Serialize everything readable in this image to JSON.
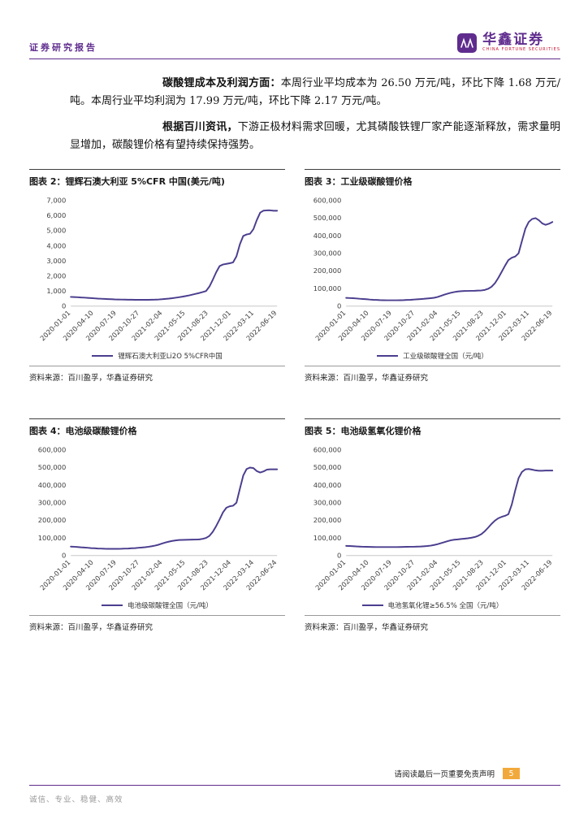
{
  "colors": {
    "accent_purple": "#5F2C8E",
    "line_purple": "#4B3E8E",
    "badge_orange": "#F2A93B",
    "brand_red": "#C8102E"
  },
  "header": {
    "report_type": "证券研究报告",
    "brand": "华鑫证券",
    "brand_sub": "CHINA FORTUNE SECURITIES"
  },
  "paragraphs": [
    {
      "lead": "碳酸锂成本及利润方面：",
      "text": "本周行业平均成本为 26.50 万元/吨，环比下降 1.68 万元/吨。本周行业平均利润为 17.99 万元/吨，环比下降 2.17 万元/吨。"
    },
    {
      "lead": "根据百川资讯，",
      "text": "下游正极材料需求回暖，尤其磷酸铁锂厂家产能逐渐释放，需求量明显增加，碳酸锂价格有望持续保持强势。"
    }
  ],
  "chart_data": [
    {
      "type": "line",
      "title": "图表 2：锂辉石澳大利亚 5%CFR 中国(美元/吨)",
      "legend": "锂辉石澳大利亚Li2O 5%CFR中国",
      "source": "资料来源：百川盈孚，华鑫证券研究",
      "ylim": [
        0,
        7000
      ],
      "ytick_step": 1000,
      "x_labels": [
        "2020-01-01",
        "2020-04-10",
        "2020-07-19",
        "2020-10-27",
        "2021-02-04",
        "2021-05-15",
        "2021-08-23",
        "2021-12-01",
        "2022-03-11",
        "2022-06-19"
      ],
      "values": [
        610,
        600,
        588,
        575,
        560,
        545,
        530,
        515,
        500,
        488,
        476,
        465,
        455,
        447,
        440,
        434,
        429,
        425,
        422,
        420,
        418,
        417,
        417,
        418,
        422,
        430,
        442,
        458,
        477,
        500,
        527,
        557,
        590,
        627,
        668,
        713,
        762,
        815,
        872,
        933,
        1000,
        1300,
        1750,
        2250,
        2650,
        2760,
        2800,
        2840,
        2900,
        3300,
        4100,
        4650,
        4750,
        4800,
        5100,
        5700,
        6200,
        6330,
        6350,
        6350,
        6320,
        6320
      ]
    },
    {
      "type": "line",
      "title": "图表 3：工业级碳酸锂价格",
      "legend": "工业级碳酸锂全国（元/吨）",
      "source": "资料来源：百川盈孚，华鑫证券研究",
      "ylim": [
        0,
        600000
      ],
      "ytick_step": 100000,
      "x_labels": [
        "2020-01-01",
        "2020-04-10",
        "2020-07-19",
        "2020-10-27",
        "2021-02-04",
        "2021-05-15",
        "2021-08-23",
        "2021-12-01",
        "2022-03-11",
        "2022-06-19"
      ],
      "values": [
        47000,
        46000,
        45000,
        43500,
        42000,
        40500,
        39000,
        37500,
        36000,
        35000,
        34200,
        33600,
        33200,
        33000,
        33000,
        33200,
        33600,
        34200,
        35000,
        36000,
        37200,
        38500,
        40000,
        41500,
        43000,
        45000,
        47500,
        52000,
        58000,
        65000,
        71000,
        76000,
        80000,
        83000,
        85000,
        86000,
        86500,
        87000,
        87500,
        88000,
        89000,
        92000,
        98000,
        110000,
        130000,
        160000,
        195000,
        230000,
        262000,
        275000,
        282000,
        300000,
        370000,
        440000,
        478000,
        495000,
        500000,
        488000,
        470000,
        462000,
        468000,
        478000
      ]
    },
    {
      "type": "line",
      "title": "图表 4：电池级碳酸锂价格",
      "legend": "电池级碳酸锂全国（元/吨）",
      "source": "资料来源：百川盈孚，华鑫证券研究",
      "ylim": [
        0,
        600000
      ],
      "ytick_step": 100000,
      "x_labels": [
        "2020-01-01",
        "2020-04-10",
        "2020-07-19",
        "2020-10-27",
        "2021-02-04",
        "2021-05-15",
        "2021-08-23",
        "2021-12-04",
        "2022-03-14",
        "2022-06-24"
      ],
      "values": [
        51000,
        50000,
        48500,
        47000,
        45500,
        44000,
        42500,
        41200,
        40200,
        39400,
        38800,
        38400,
        38200,
        38200,
        38400,
        38800,
        39400,
        40200,
        41200,
        42500,
        44000,
        45500,
        47500,
        50000,
        53000,
        57000,
        62000,
        68000,
        74000,
        79000,
        83000,
        86000,
        88000,
        89000,
        89500,
        90000,
        90500,
        91000,
        92000,
        95000,
        100000,
        112000,
        135000,
        168000,
        205000,
        245000,
        272000,
        280000,
        283000,
        300000,
        380000,
        455000,
        492000,
        500000,
        497000,
        480000,
        472000,
        478000,
        488000,
        490000,
        490000,
        490000
      ]
    },
    {
      "type": "line",
      "title": "图表 5：电池级氢氧化锂价格",
      "legend": "电池氢氧化锂≥56.5% 全国（元/吨）",
      "source": "资料来源：百川盈孚，华鑫证券研究",
      "ylim": [
        0,
        600000
      ],
      "ytick_step": 100000,
      "x_labels": [
        "2020-01-01",
        "2020-04-10",
        "2020-07-19",
        "2020-10-27",
        "2021-02-04",
        "2021-05-15",
        "2021-08-23",
        "2021-12-01",
        "2022-03-11",
        "2022-06-19"
      ],
      "values": [
        55000,
        54000,
        53000,
        52000,
        51000,
        50200,
        49500,
        49000,
        48600,
        48300,
        48100,
        48000,
        48000,
        48000,
        48100,
        48300,
        48600,
        49000,
        49400,
        49800,
        50200,
        50800,
        51500,
        52500,
        54000,
        56500,
        60000,
        64500,
        70000,
        76000,
        82000,
        87000,
        90000,
        92000,
        94000,
        96000,
        98000,
        101000,
        105000,
        112000,
        122000,
        138000,
        158000,
        180000,
        198000,
        212000,
        220000,
        226000,
        235000,
        290000,
        370000,
        440000,
        475000,
        490000,
        492000,
        488000,
        484000,
        482000,
        482000,
        483000,
        483000,
        483000
      ]
    }
  ],
  "footer": {
    "disclaimer": "请阅读最后一页重要免责声明",
    "page_number": "5",
    "slogan": "诚信、专业、稳健、高效"
  }
}
